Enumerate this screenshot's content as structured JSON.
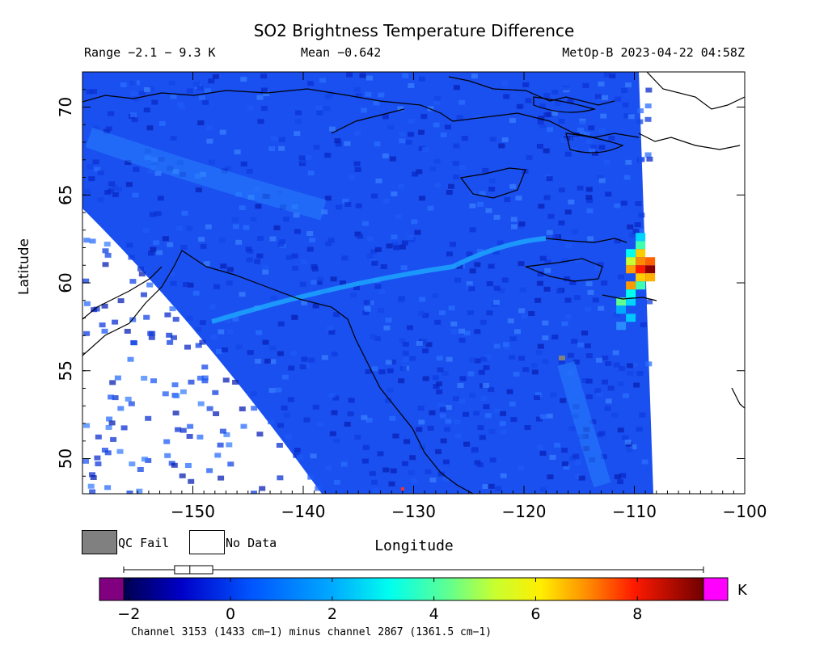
{
  "title": "SO2 Brightness Temperature Difference",
  "info": {
    "range": "Range −2.1 − 9.3 K",
    "mean": "Mean −0.642",
    "satellite_time": "MetOp-B 2023-04-22 04:58Z"
  },
  "map": {
    "ylabel": "Latitude",
    "xlabel": "Longitude",
    "lat_ticks": [
      "70",
      "65",
      "60",
      "55",
      "50"
    ],
    "lon_ticks": [
      "−150",
      "−140",
      "−130",
      "−120",
      "−110",
      "−100"
    ],
    "lon_range": [
      -160,
      -100
    ],
    "lat_range": [
      48,
      72
    ],
    "hotspot": {
      "lon": -109,
      "lat": 61,
      "max_value": 9.3
    }
  },
  "legend": {
    "qc_fail": {
      "label": "QC Fail",
      "color": "#808080"
    },
    "no_data": {
      "label": "No Data",
      "color": "#ffffff"
    }
  },
  "colorbar": {
    "ticks": [
      "−2",
      "0",
      "2",
      "4",
      "6",
      "8"
    ],
    "tick_values": [
      -2,
      0,
      2,
      4,
      6,
      8
    ],
    "range": [
      -2.1,
      9.3
    ],
    "box_summary": {
      "whisker_low": -2.1,
      "q1": -1.1,
      "median": -0.8,
      "q3": -0.35,
      "whisker_high": 9.3
    },
    "underflow_color": "#800080",
    "overflow_color": "#ff00ff",
    "unit": "K",
    "caption": "Channel 3153 (1433 cm−1) minus channel 2867 (1361.5 cm−1)"
  }
}
